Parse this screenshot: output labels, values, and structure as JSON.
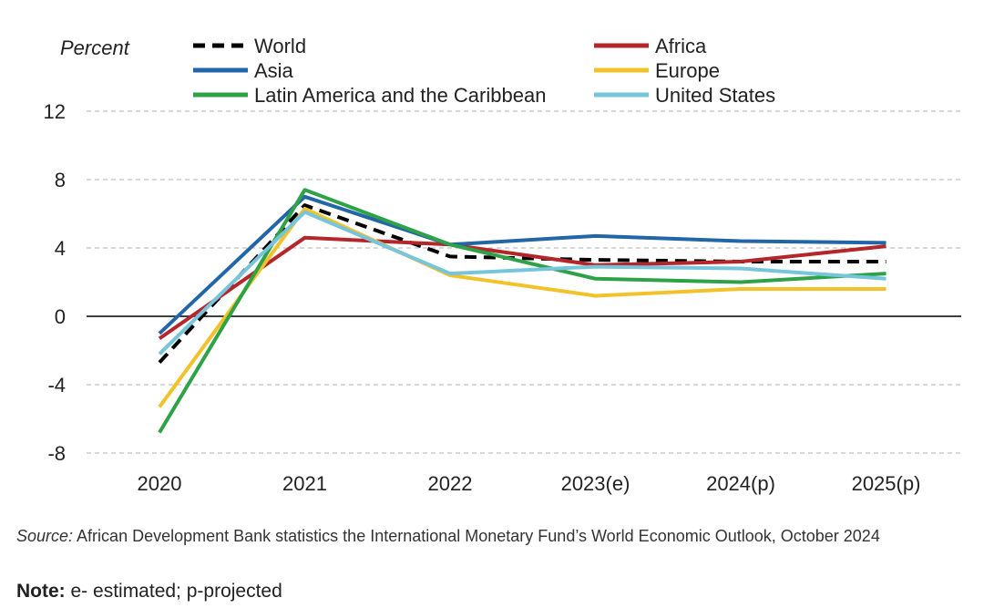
{
  "chart_data": {
    "type": "line",
    "ylabel": "Percent",
    "ylim": [
      -8,
      12
    ],
    "yticks": [
      -8,
      -4,
      0,
      4,
      8,
      12
    ],
    "categories": [
      "2020",
      "2021",
      "2022",
      "2023(e)",
      "2024(p)",
      "2025(p)"
    ],
    "grid": true,
    "legend_position": "top",
    "series": [
      {
        "name": "World",
        "color": "#000000",
        "dashed": true,
        "values": [
          -2.7,
          6.5,
          3.5,
          3.3,
          3.2,
          3.2
        ]
      },
      {
        "name": "Africa",
        "color": "#b5262a",
        "dashed": false,
        "values": [
          -1.3,
          4.6,
          4.2,
          3.0,
          3.2,
          4.1
        ]
      },
      {
        "name": "Asia",
        "color": "#2366a8",
        "dashed": false,
        "values": [
          -1.0,
          7.0,
          4.2,
          4.7,
          4.4,
          4.3
        ]
      },
      {
        "name": "Europe",
        "color": "#f2c22b",
        "dashed": false,
        "values": [
          -5.3,
          6.3,
          2.4,
          1.2,
          1.6,
          1.6
        ]
      },
      {
        "name": "Latin America and the Caribbean",
        "color": "#2ea247",
        "dashed": false,
        "values": [
          -6.8,
          7.4,
          4.2,
          2.2,
          2.0,
          2.5
        ]
      },
      {
        "name": "United States",
        "color": "#76c5da",
        "dashed": false,
        "values": [
          -2.2,
          6.1,
          2.5,
          2.9,
          2.8,
          2.2
        ]
      }
    ]
  },
  "footer": {
    "source_label": "Source:",
    "source_text": " African Development Bank statistics the International Monetary Fund’s World Economic Outlook, October 2024",
    "note_label": "Note:",
    "note_text": " e- estimated; p-projected"
  }
}
